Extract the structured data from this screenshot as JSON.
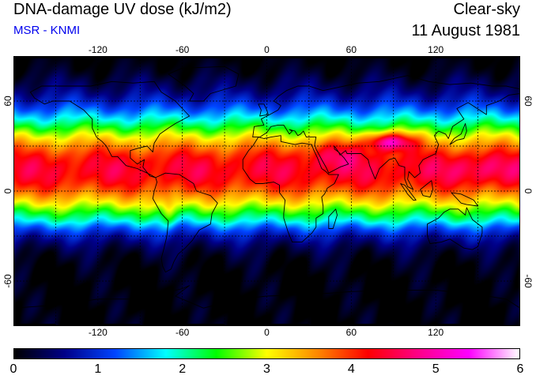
{
  "header": {
    "title": "DNA-damage UV dose (kJ/m2)",
    "source": "MSR - KNMI",
    "sky_condition": "Clear-sky",
    "date": "11 August 1981"
  },
  "map": {
    "lon_labels": [
      "-120",
      "-60",
      "0",
      "60",
      "120"
    ],
    "lon_values": [
      -120,
      -60,
      0,
      60,
      120
    ],
    "lat_labels": [
      "60",
      "0",
      "-60"
    ],
    "lat_values": [
      60,
      0,
      -60
    ],
    "gridline_lons": [
      -150,
      -120,
      -90,
      -60,
      -30,
      0,
      30,
      60,
      90,
      120,
      150
    ],
    "gridline_lats": [
      60,
      30,
      0,
      -30,
      -60
    ],
    "lon_range": [
      -180,
      180
    ],
    "lat_range": [
      -90,
      90
    ]
  },
  "colorbar": {
    "labels": [
      "0",
      "1",
      "2",
      "3",
      "4",
      "5",
      "6"
    ],
    "min": 0,
    "max": 6,
    "stops": [
      "#000000",
      "#000088",
      "#0044ff",
      "#00ffff",
      "#00ff00",
      "#ffff00",
      "#ff8800",
      "#ff0000",
      "#ff0088",
      "#ff00ff",
      "#ffffff"
    ]
  }
}
